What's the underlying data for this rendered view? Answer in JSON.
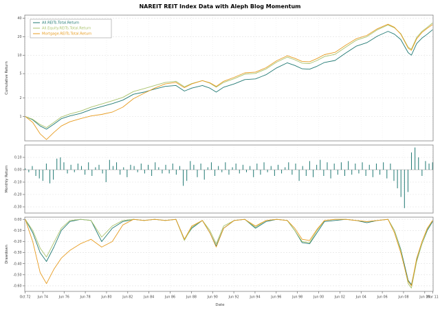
{
  "chart_data": {
    "type": "line",
    "title": "NAREIT REIT Index Data with Aleph Blog Momentum",
    "x_label": "Date",
    "legend_position": "top-left",
    "grid": true,
    "colors": {
      "all": "#1f7872",
      "equity": "#a9c26b",
      "mortgage": "#e79b1e"
    },
    "series_names": [
      "All.REITs.Total.Return",
      "All.Equity.REITs.Total.Return",
      "Mortgage.REITs.Total.Return"
    ],
    "x_ticks": [
      "Oct 72",
      "Jun 74",
      "Jun 76",
      "Jun 78",
      "Jun 80",
      "Jun 82",
      "Jun 84",
      "Jun 86",
      "Jun 88",
      "Jun 90",
      "Jun 92",
      "Jun 94",
      "Jun 96",
      "Jun 98",
      "Jun 00",
      "Jun 02",
      "Jun 04",
      "Jun 06",
      "Jun 08",
      "Jun 10",
      "Mar 11"
    ],
    "x_tick_years": [
      1972.79,
      1974.46,
      1976.46,
      1978.46,
      1980.46,
      1982.46,
      1984.46,
      1986.46,
      1988.46,
      1990.46,
      1992.46,
      1994.46,
      1996.46,
      1998.46,
      2000.46,
      2002.46,
      2004.46,
      2006.46,
      2008.46,
      2010.46,
      2011.21
    ],
    "x_range": [
      1972.75,
      2011.25
    ],
    "panels": [
      {
        "name": "cumulative",
        "ylabel": "Cumulative Return",
        "yscale": "log",
        "ylim": [
          0.4,
          45
        ],
        "yticks": [
          1,
          2,
          5,
          10,
          20,
          40
        ],
        "x": [
          1972.8,
          1973.5,
          1974.2,
          1974.8,
          1975.5,
          1976.2,
          1977,
          1978,
          1979,
          1980,
          1981,
          1982,
          1983,
          1984,
          1985,
          1986,
          1987,
          1987.8,
          1988.5,
          1989.5,
          1990.2,
          1990.8,
          1991.5,
          1992.5,
          1993.5,
          1994.5,
          1995.5,
          1996.5,
          1997.5,
          1998.2,
          1998.9,
          1999.6,
          2000.3,
          2001,
          2002,
          2003,
          2004,
          2005,
          2006,
          2007,
          2007.6,
          2008.2,
          2008.9,
          2009.2,
          2009.7,
          2010.2,
          2010.7,
          2011.2
        ],
        "series": [
          {
            "name": "All.REITs.Total.Return",
            "color_key": "all",
            "values": [
              1.0,
              0.88,
              0.7,
              0.62,
              0.75,
              0.92,
              1.02,
              1.12,
              1.3,
              1.45,
              1.62,
              1.85,
              2.3,
              2.5,
              2.8,
              3.1,
              3.2,
              2.6,
              2.9,
              3.2,
              2.9,
              2.5,
              3.0,
              3.4,
              4.0,
              4.1,
              4.8,
              6.2,
              7.5,
              6.8,
              6.0,
              5.9,
              6.6,
              7.6,
              8.2,
              10.8,
              14.0,
              16.0,
              20.5,
              24.5,
              22.0,
              18.0,
              11.0,
              10.0,
              15.5,
              19.0,
              22.0,
              26.0
            ]
          },
          {
            "name": "All.Equity.REITs.Total.Return",
            "color_key": "equity",
            "values": [
              1.0,
              0.9,
              0.74,
              0.66,
              0.8,
              0.98,
              1.1,
              1.22,
              1.42,
              1.6,
              1.8,
              2.05,
              2.55,
              2.85,
              3.2,
              3.6,
              3.75,
              3.05,
              3.45,
              3.85,
              3.5,
              3.0,
              3.6,
              4.15,
              4.9,
              5.05,
              5.95,
              7.7,
              9.3,
              8.4,
              7.4,
              7.3,
              8.2,
              9.5,
              10.3,
              13.5,
              17.5,
              20.0,
              26.0,
              31.0,
              28.0,
              22.5,
              13.5,
              12.5,
              19.5,
              24.5,
              28.5,
              33.5
            ]
          },
          {
            "name": "Mortgage.REITs.Total.Return",
            "color_key": "mortgage",
            "values": [
              1.0,
              0.8,
              0.52,
              0.42,
              0.55,
              0.7,
              0.82,
              0.92,
              1.02,
              1.08,
              1.18,
              1.42,
              1.95,
              2.4,
              2.9,
              3.4,
              3.6,
              2.95,
              3.4,
              3.85,
              3.55,
              3.1,
              3.75,
              4.35,
              5.15,
              5.3,
              6.25,
              8.1,
              9.8,
              8.9,
              7.9,
              7.8,
              8.8,
              10.2,
              11.1,
              14.5,
              18.5,
              21.0,
              27.0,
              32.0,
              28.5,
              22.0,
              13.0,
              12.0,
              18.5,
              23.5,
              27.5,
              31.5
            ]
          }
        ]
      },
      {
        "name": "monthly",
        "ylabel": "Monthly Return",
        "yscale": "linear",
        "ylim": [
          -0.35,
          0.2
        ],
        "yticks": [
          0.1,
          0.0,
          -0.1,
          -0.2,
          -0.3
        ],
        "bar_series_name": "All.REITs.Total.Return",
        "bar_color_key": "all",
        "x_start": 1972.8,
        "x_step": 0.331,
        "bar_values": [
          0.01,
          -0.02,
          0.03,
          -0.05,
          -0.07,
          -0.09,
          0.05,
          -0.11,
          -0.08,
          0.09,
          0.1,
          0.06,
          -0.03,
          0.04,
          -0.02,
          0.05,
          0.03,
          -0.04,
          0.06,
          -0.05,
          0.02,
          0.04,
          -0.03,
          -0.1,
          0.08,
          0.03,
          0.06,
          -0.04,
          0.02,
          -0.06,
          0.04,
          0.03,
          -0.02,
          0.05,
          -0.03,
          0.04,
          -0.05,
          0.06,
          0.02,
          -0.03,
          0.04,
          -0.03,
          0.05,
          -0.04,
          0.03,
          -0.13,
          -0.09,
          0.07,
          0.04,
          -0.06,
          0.05,
          -0.08,
          0.02,
          0.06,
          -0.05,
          0.03,
          -0.02,
          0.06,
          -0.04,
          0.02,
          0.05,
          -0.03,
          0.04,
          -0.02,
          0.03,
          -0.06,
          0.05,
          -0.04,
          0.06,
          -0.02,
          0.03,
          -0.05,
          0.04,
          -0.03,
          0.02,
          0.06,
          -0.04,
          0.05,
          -0.09,
          0.03,
          -0.05,
          0.07,
          -0.06,
          0.04,
          0.08,
          -0.05,
          0.06,
          -0.07,
          0.05,
          -0.04,
          0.06,
          -0.05,
          0.07,
          -0.04,
          0.05,
          -0.03,
          0.06,
          -0.05,
          0.04,
          -0.06,
          0.05,
          -0.04,
          0.06,
          -0.07,
          0.05,
          -0.09,
          -0.15,
          -0.22,
          -0.31,
          -0.18,
          0.14,
          0.18,
          0.1,
          -0.05,
          0.07,
          0.05,
          0.06
        ]
      },
      {
        "name": "drawdown",
        "ylabel": "Drawdown",
        "yscale": "linear",
        "ylim": [
          -0.65,
          0.02
        ],
        "yticks": [
          0.0,
          -0.1,
          -0.2,
          -0.3,
          -0.4,
          -0.5,
          -0.6
        ],
        "x_ref": "cumulative",
        "series": [
          {
            "name": "All.REITs.Total.Return",
            "color_key": "all",
            "values": [
              0,
              -0.12,
              -0.3,
              -0.38,
              -0.25,
              -0.1,
              -0.02,
              0,
              -0.01,
              -0.2,
              -0.08,
              -0.02,
              0,
              -0.01,
              0,
              -0.01,
              0,
              -0.18,
              -0.08,
              -0.01,
              -0.12,
              -0.24,
              -0.08,
              -0.01,
              0,
              -0.08,
              -0.02,
              0,
              -0.01,
              -0.1,
              -0.21,
              -0.22,
              -0.12,
              -0.02,
              -0.01,
              0,
              -0.01,
              -0.03,
              -0.01,
              0,
              -0.1,
              -0.27,
              -0.55,
              -0.59,
              -0.37,
              -0.22,
              -0.1,
              -0.02
            ]
          },
          {
            "name": "All.Equity.REITs.Total.Return",
            "color_key": "equity",
            "values": [
              0,
              -0.1,
              -0.26,
              -0.34,
              -0.21,
              -0.08,
              -0.01,
              0,
              -0.01,
              -0.16,
              -0.06,
              -0.01,
              0,
              -0.01,
              0,
              -0.01,
              0,
              -0.19,
              -0.07,
              -0.01,
              -0.1,
              -0.22,
              -0.06,
              -0.01,
              0,
              -0.07,
              -0.01,
              0,
              -0.01,
              -0.1,
              -0.2,
              -0.21,
              -0.1,
              -0.01,
              0,
              0,
              -0.01,
              -0.02,
              -0.01,
              0,
              -0.1,
              -0.28,
              -0.58,
              -0.62,
              -0.38,
              -0.22,
              -0.09,
              -0.01
            ]
          },
          {
            "name": "Mortgage.REITs.Total.Return",
            "color_key": "mortgage",
            "values": [
              0,
              -0.2,
              -0.48,
              -0.58,
              -0.45,
              -0.35,
              -0.28,
              -0.22,
              -0.18,
              -0.25,
              -0.2,
              -0.05,
              0,
              -0.01,
              0,
              -0.01,
              0,
              -0.18,
              -0.06,
              -0.01,
              -0.12,
              -0.25,
              -0.08,
              -0.01,
              0,
              -0.06,
              -0.01,
              0,
              -0.01,
              -0.08,
              -0.18,
              -0.19,
              -0.09,
              -0.01,
              0,
              0,
              -0.01,
              -0.02,
              -0.01,
              0,
              -0.12,
              -0.3,
              -0.56,
              -0.6,
              -0.35,
              -0.2,
              -0.08,
              -0.01
            ]
          }
        ]
      }
    ]
  }
}
